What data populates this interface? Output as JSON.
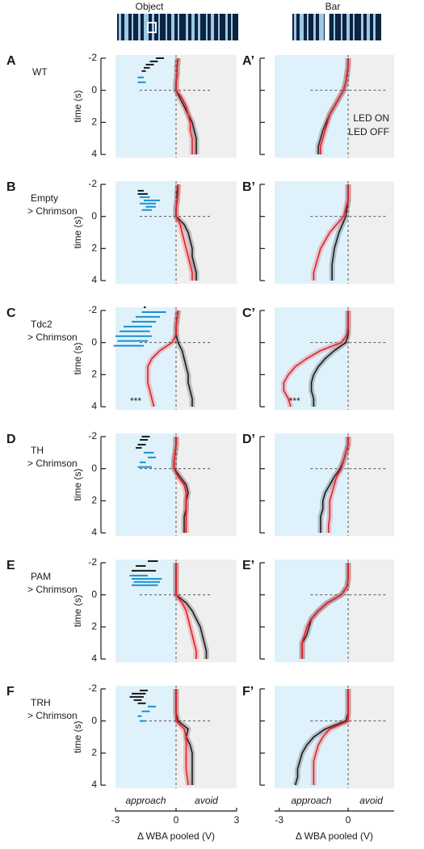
{
  "headers": [
    "Object",
    "Bar"
  ],
  "chart_data": [
    {
      "type": "line",
      "panel": "A",
      "label": [
        "WT"
      ],
      "time_label": "time (s)",
      "times": [
        -2,
        -1.5,
        -1,
        -0.5,
        0,
        0.5,
        1,
        1.5,
        2,
        2.5,
        3,
        3.5,
        4
      ],
      "time_lim": [
        -2.2,
        4.2
      ],
      "time_ticks": [
        -2,
        0,
        2,
        4
      ],
      "wba_lim": [
        -3,
        3
      ],
      "series": [
        {
          "name": "LED ON",
          "color": "#e3202b",
          "values": [
            0.1,
            0.05,
            0.05,
            0,
            0,
            0.3,
            0.5,
            0.6,
            0.7,
            0.7,
            0.8,
            0.8,
            0.8
          ]
        },
        {
          "name": "LED OFF",
          "color": "#1a1a1a",
          "values": [
            0.1,
            0.05,
            0.05,
            0,
            0,
            0.2,
            0.4,
            0.6,
            0.8,
            0.9,
            1.0,
            1.0,
            1.0
          ]
        }
      ],
      "seg_time": [
        -2.0,
        -1.8,
        -1.6,
        -1.4,
        -1.2,
        -0.8,
        -0.5
      ],
      "seg_start": [
        -1.0,
        -1.3,
        -1.5,
        -1.6,
        -1.7,
        -1.9,
        -1.9
      ],
      "seg_end": [
        -0.6,
        -0.9,
        -1.1,
        -1.3,
        -1.5,
        -1.6,
        -1.5
      ],
      "seg_color": [
        "#1a1a1a",
        "#1a1a1a",
        "#1a1a1a",
        "#1a1a1a",
        "#1a1a1a",
        "#1b8fd2",
        "#1b8fd2"
      ]
    },
    {
      "type": "line",
      "panel": "A’",
      "times": [
        -2,
        -1.5,
        -1,
        -0.5,
        0,
        0.5,
        1,
        1.5,
        2,
        2.5,
        3,
        3.5,
        4
      ],
      "time_lim": [
        -2.2,
        4.2
      ],
      "time_ticks": [
        -2,
        0,
        2,
        4
      ],
      "time_tick_labels": false,
      "wba_lim": [
        -3.2,
        2
      ],
      "legend": "right",
      "series": [
        {
          "name": "LED ON",
          "color": "#e3202b",
          "values": [
            0,
            0,
            -0.05,
            -0.1,
            -0.2,
            -0.4,
            -0.6,
            -0.8,
            -0.9,
            -1.0,
            -1.1,
            -1.2,
            -1.2
          ]
        },
        {
          "name": "LED OFF",
          "color": "#1a1a1a",
          "values": [
            0,
            0,
            -0.05,
            -0.1,
            -0.2,
            -0.4,
            -0.6,
            -0.8,
            -0.95,
            -1.1,
            -1.2,
            -1.3,
            -1.3
          ]
        }
      ]
    },
    {
      "type": "line",
      "panel": "B",
      "label": [
        "Empty",
        "> Chrimson"
      ],
      "time_label": "time (s)",
      "times": [
        -2,
        -1.5,
        -1,
        -0.5,
        0,
        0.5,
        1,
        1.5,
        2,
        2.5,
        3,
        3.5,
        4
      ],
      "time_lim": [
        -2.2,
        4.2
      ],
      "time_ticks": [
        -2,
        0,
        2,
        4
      ],
      "wba_lim": [
        -3,
        3
      ],
      "series": [
        {
          "name": "LED ON",
          "color": "#e3202b",
          "values": [
            0.1,
            0.1,
            0.05,
            0,
            0,
            0.2,
            0.3,
            0.4,
            0.5,
            0.6,
            0.7,
            0.8,
            0.8
          ]
        },
        {
          "name": "LED OFF",
          "color": "#1a1a1a",
          "values": [
            0.1,
            0.05,
            0.05,
            0,
            0,
            0.4,
            0.6,
            0.7,
            0.8,
            0.8,
            0.9,
            1.0,
            1.0
          ]
        }
      ],
      "seg_time": [
        -1.6,
        -1.4,
        -1.2,
        -1.0,
        -0.8,
        -0.6,
        -0.4
      ],
      "seg_start": [
        -1.9,
        -1.9,
        -1.8,
        -1.6,
        -1.8,
        -1.5,
        -1.7
      ],
      "seg_end": [
        -1.6,
        -1.4,
        -1.3,
        -0.8,
        -1.0,
        -1.0,
        -1.2
      ],
      "seg_color": [
        "#1a1a1a",
        "#1a1a1a",
        "#1b8fd2",
        "#1b8fd2",
        "#1b8fd2",
        "#1b8fd2",
        "#1b8fd2"
      ]
    },
    {
      "type": "line",
      "panel": "B’",
      "times": [
        -2,
        -1.5,
        -1,
        -0.5,
        0,
        0.5,
        1,
        1.5,
        2,
        2.5,
        3,
        3.5,
        4
      ],
      "time_lim": [
        -2.2,
        4.2
      ],
      "time_ticks": [
        -2,
        0,
        2,
        4
      ],
      "time_tick_labels": false,
      "wba_lim": [
        -3.2,
        2
      ],
      "series": [
        {
          "name": "LED ON",
          "color": "#e3202b",
          "values": [
            0,
            0,
            0,
            -0.1,
            -0.2,
            -0.5,
            -0.8,
            -1.0,
            -1.2,
            -1.3,
            -1.4,
            -1.5,
            -1.5
          ]
        },
        {
          "name": "LED OFF",
          "color": "#1a1a1a",
          "values": [
            0,
            0,
            0,
            -0.05,
            -0.1,
            -0.25,
            -0.4,
            -0.5,
            -0.6,
            -0.65,
            -0.7,
            -0.7,
            -0.7
          ]
        }
      ]
    },
    {
      "type": "line",
      "panel": "C",
      "label": [
        "Tdc2",
        "> Chrimson"
      ],
      "time_label": "time (s)",
      "annotation": "***",
      "times": [
        -2,
        -1.5,
        -1,
        -0.5,
        0,
        0.5,
        1,
        1.5,
        2,
        2.5,
        3,
        3.5,
        4
      ],
      "time_lim": [
        -2.2,
        4.2
      ],
      "time_ticks": [
        -2,
        0,
        2,
        4
      ],
      "wba_lim": [
        -3,
        3
      ],
      "series": [
        {
          "name": "LED ON",
          "color": "#e3202b",
          "values": [
            0.1,
            0.05,
            0,
            0,
            -0.2,
            -0.8,
            -1.2,
            -1.4,
            -1.4,
            -1.4,
            -1.3,
            -1.2,
            -1.1
          ]
        },
        {
          "name": "LED OFF",
          "color": "#1a1a1a",
          "values": [
            0.1,
            0.05,
            0,
            0,
            0.1,
            0.3,
            0.4,
            0.5,
            0.6,
            0.6,
            0.7,
            0.8,
            0.8
          ]
        }
      ],
      "seg_time": [
        -2.2,
        -1.9,
        -1.6,
        -1.3,
        -1.0,
        -0.7,
        -0.4,
        -0.1,
        0.2
      ],
      "seg_start": [
        -1.6,
        -1.7,
        -2.0,
        -2.2,
        -2.6,
        -2.8,
        -3.0,
        -2.9,
        -3.1
      ],
      "seg_end": [
        -1.5,
        -0.5,
        -0.8,
        -1.0,
        -1.2,
        -1.3,
        -1.2,
        -1.4,
        -1.6
      ],
      "seg_color": [
        "#1a1a1a",
        "#1b8fd2",
        "#1b8fd2",
        "#1b8fd2",
        "#1b8fd2",
        "#1b8fd2",
        "#1b8fd2",
        "#1b8fd2",
        "#1b8fd2"
      ]
    },
    {
      "type": "line",
      "panel": "C’",
      "annotation": "***",
      "times": [
        -2,
        -1.5,
        -1,
        -0.5,
        0,
        0.5,
        1,
        1.5,
        2,
        2.5,
        3,
        3.5,
        4
      ],
      "time_lim": [
        -2.2,
        4.2
      ],
      "time_ticks": [
        -2,
        0,
        2,
        4
      ],
      "time_tick_labels": false,
      "wba_lim": [
        -3.2,
        2
      ],
      "series": [
        {
          "name": "LED ON",
          "color": "#e3202b",
          "values": [
            0,
            0,
            0,
            -0.05,
            -0.3,
            -1.2,
            -1.8,
            -2.3,
            -2.6,
            -2.8,
            -2.8,
            -2.6,
            -2.5
          ]
        },
        {
          "name": "LED OFF",
          "color": "#1a1a1a",
          "values": [
            0,
            0,
            0,
            0,
            -0.1,
            -0.6,
            -1.0,
            -1.3,
            -1.5,
            -1.6,
            -1.6,
            -1.5,
            -1.5
          ]
        }
      ]
    },
    {
      "type": "line",
      "panel": "D",
      "label": [
        "TH",
        "> Chrimson"
      ],
      "time_label": "time (s)",
      "times": [
        -2,
        -1.5,
        -1,
        -0.5,
        0,
        0.5,
        1,
        1.5,
        2,
        2.5,
        3,
        3.5,
        4
      ],
      "time_lim": [
        -2.2,
        4.2
      ],
      "time_ticks": [
        -2,
        0,
        2,
        4
      ],
      "wba_lim": [
        -3,
        3
      ],
      "series": [
        {
          "name": "LED ON",
          "color": "#e3202b",
          "values": [
            0,
            0,
            -0.05,
            -0.1,
            -0.1,
            0.1,
            0.4,
            0.5,
            0.5,
            0.5,
            0.5,
            0.5,
            0.5
          ]
        },
        {
          "name": "LED OFF",
          "color": "#1a1a1a",
          "values": [
            0,
            0,
            -0.05,
            -0.1,
            -0.1,
            0.2,
            0.5,
            0.6,
            0.5,
            0.5,
            0.4,
            0.4,
            0.4
          ]
        }
      ],
      "seg_time": [
        -2.0,
        -1.8,
        -1.5,
        -1.3,
        -1.0,
        -0.7,
        -0.4,
        -0.1
      ],
      "seg_start": [
        -1.7,
        -1.8,
        -1.9,
        -2.0,
        -1.6,
        -1.4,
        -1.8,
        -1.9
      ],
      "seg_end": [
        -1.3,
        -1.4,
        -1.5,
        -1.7,
        -1.1,
        -1.0,
        -1.5,
        -1.2
      ],
      "seg_color": [
        "#1a1a1a",
        "#1a1a1a",
        "#1a1a1a",
        "#1a1a1a",
        "#1b8fd2",
        "#1b8fd2",
        "#1b8fd2",
        "#1b8fd2"
      ]
    },
    {
      "type": "line",
      "panel": "D’",
      "times": [
        -2,
        -1.5,
        -1,
        -0.5,
        0,
        0.5,
        1,
        1.5,
        2,
        2.5,
        3,
        3.5,
        4
      ],
      "time_lim": [
        -2.2,
        4.2
      ],
      "time_ticks": [
        -2,
        0,
        2,
        4
      ],
      "time_tick_labels": false,
      "wba_lim": [
        -3.2,
        2
      ],
      "series": [
        {
          "name": "LED ON",
          "color": "#e3202b",
          "values": [
            0,
            0,
            -0.1,
            -0.2,
            -0.3,
            -0.5,
            -0.6,
            -0.7,
            -0.8,
            -0.8,
            -0.8,
            -0.85,
            -0.85
          ]
        },
        {
          "name": "LED OFF",
          "color": "#1a1a1a",
          "values": [
            0,
            0,
            -0.1,
            -0.2,
            -0.35,
            -0.6,
            -0.8,
            -1.0,
            -1.1,
            -1.1,
            -1.2,
            -1.2,
            -1.2
          ]
        }
      ]
    },
    {
      "type": "line",
      "panel": "E",
      "label": [
        "PAM",
        "> Chrimson"
      ],
      "time_label": "time (s)",
      "times": [
        -2,
        -1.5,
        -1,
        -0.5,
        0,
        0.5,
        1,
        1.5,
        2,
        2.5,
        3,
        3.5,
        4
      ],
      "time_lim": [
        -2.2,
        4.2
      ],
      "time_ticks": [
        -2,
        0,
        2,
        4
      ],
      "wba_lim": [
        -3,
        3
      ],
      "series": [
        {
          "name": "LED ON",
          "color": "#e3202b",
          "values": [
            0,
            0,
            0,
            0,
            0,
            0.3,
            0.5,
            0.6,
            0.7,
            0.8,
            0.9,
            1.0,
            1.0
          ]
        },
        {
          "name": "LED OFF",
          "color": "#1a1a1a",
          "values": [
            0,
            0,
            0,
            0,
            0,
            0.5,
            0.8,
            1.0,
            1.2,
            1.3,
            1.4,
            1.5,
            1.5
          ]
        }
      ],
      "seg_time": [
        -2.1,
        -1.8,
        -1.5,
        -1.2,
        -1.0,
        -0.8,
        -0.6
      ],
      "seg_start": [
        -1.4,
        -2.0,
        -2.2,
        -2.3,
        -2.2,
        -2.1,
        -2.2
      ],
      "seg_end": [
        -0.9,
        -1.5,
        -1.0,
        -1.4,
        -0.7,
        -0.8,
        -0.9
      ],
      "seg_color": [
        "#1a1a1a",
        "#1a1a1a",
        "#1a1a1a",
        "#1b8fd2",
        "#1b8fd2",
        "#1b8fd2",
        "#1b8fd2"
      ]
    },
    {
      "type": "line",
      "panel": "E’",
      "times": [
        -2,
        -1.5,
        -1,
        -0.5,
        0,
        0.5,
        1,
        1.5,
        2,
        2.5,
        3,
        3.5,
        4
      ],
      "time_lim": [
        -2.2,
        4.2
      ],
      "time_ticks": [
        -2,
        0,
        2,
        4
      ],
      "time_tick_labels": false,
      "wba_lim": [
        -3.2,
        2
      ],
      "series": [
        {
          "name": "LED ON",
          "color": "#e3202b",
          "values": [
            0,
            0,
            0,
            -0.05,
            -0.3,
            -0.9,
            -1.3,
            -1.6,
            -1.8,
            -1.9,
            -2.0,
            -2.0,
            -2.0
          ]
        },
        {
          "name": "LED OFF",
          "color": "#1a1a1a",
          "values": [
            0,
            0,
            0,
            -0.05,
            -0.3,
            -0.9,
            -1.3,
            -1.6,
            -1.7,
            -1.8,
            -2.0,
            -2.0,
            -2.0
          ]
        }
      ]
    },
    {
      "type": "line",
      "panel": "F",
      "label": [
        "TRH",
        "> Chrimson"
      ],
      "time_label": "time (s)",
      "times": [
        -2,
        -1.5,
        -1,
        -0.5,
        0,
        0.5,
        1,
        1.5,
        2,
        2.5,
        3,
        3.5,
        4
      ],
      "time_lim": [
        -2.2,
        4.2
      ],
      "time_ticks": [
        -2,
        0,
        2,
        4
      ],
      "wba_lim": [
        -3,
        3
      ],
      "wba_ticks": [
        -3,
        0,
        3
      ],
      "wba_label": "Δ WBA  pooled (V)",
      "left_region": "approach",
      "right_region": "avoid",
      "series": [
        {
          "name": "LED ON",
          "color": "#e3202b",
          "values": [
            0,
            0,
            0,
            0,
            0,
            0.4,
            0.5,
            0.5,
            0.5,
            0.5,
            0.5,
            0.55,
            0.6
          ]
        },
        {
          "name": "LED OFF",
          "color": "#1a1a1a",
          "values": [
            0,
            0,
            0,
            0,
            0.1,
            0.6,
            0.5,
            0.7,
            0.8,
            0.8,
            0.8,
            0.8,
            0.8
          ]
        }
      ],
      "seg_time": [
        -1.9,
        -1.7,
        -1.5,
        -1.3,
        -1.1,
        -0.9,
        -0.6,
        -0.3,
        0
      ],
      "seg_start": [
        -1.8,
        -2.2,
        -2.3,
        -2.1,
        -1.9,
        -1.4,
        -1.7,
        -1.9,
        -1.8
      ],
      "seg_end": [
        -1.4,
        -1.5,
        -1.6,
        -1.7,
        -1.5,
        -1.0,
        -1.3,
        -1.7,
        -1.5
      ],
      "seg_color": [
        "#1a1a1a",
        "#1a1a1a",
        "#1a1a1a",
        "#1a1a1a",
        "#1a1a1a",
        "#1b8fd2",
        "#1b8fd2",
        "#1b8fd2",
        "#1b8fd2"
      ]
    },
    {
      "type": "line",
      "panel": "F’",
      "times": [
        -2,
        -1.5,
        -1,
        -0.5,
        0,
        0.5,
        1,
        1.5,
        2,
        2.5,
        3,
        3.5,
        4
      ],
      "time_lim": [
        -2.2,
        4.2
      ],
      "time_ticks": [
        -2,
        0,
        2,
        4
      ],
      "time_tick_labels": false,
      "wba_lim": [
        -3.2,
        2
      ],
      "wba_ticks": [
        -3,
        0
      ],
      "wba_label": "Δ WBA  pooled (V)",
      "left_region": "approach",
      "right_region": "avoid",
      "series": [
        {
          "name": "LED ON",
          "color": "#e3202b",
          "values": [
            0,
            0,
            0,
            0,
            0,
            -0.8,
            -1.1,
            -1.3,
            -1.4,
            -1.5,
            -1.5,
            -1.5,
            -1.5
          ]
        },
        {
          "name": "LED OFF",
          "color": "#1a1a1a",
          "values": [
            0,
            0,
            0,
            0,
            -0.1,
            -1.0,
            -1.5,
            -1.8,
            -2.0,
            -2.1,
            -2.2,
            -2.2,
            -2.3
          ]
        }
      ]
    }
  ]
}
